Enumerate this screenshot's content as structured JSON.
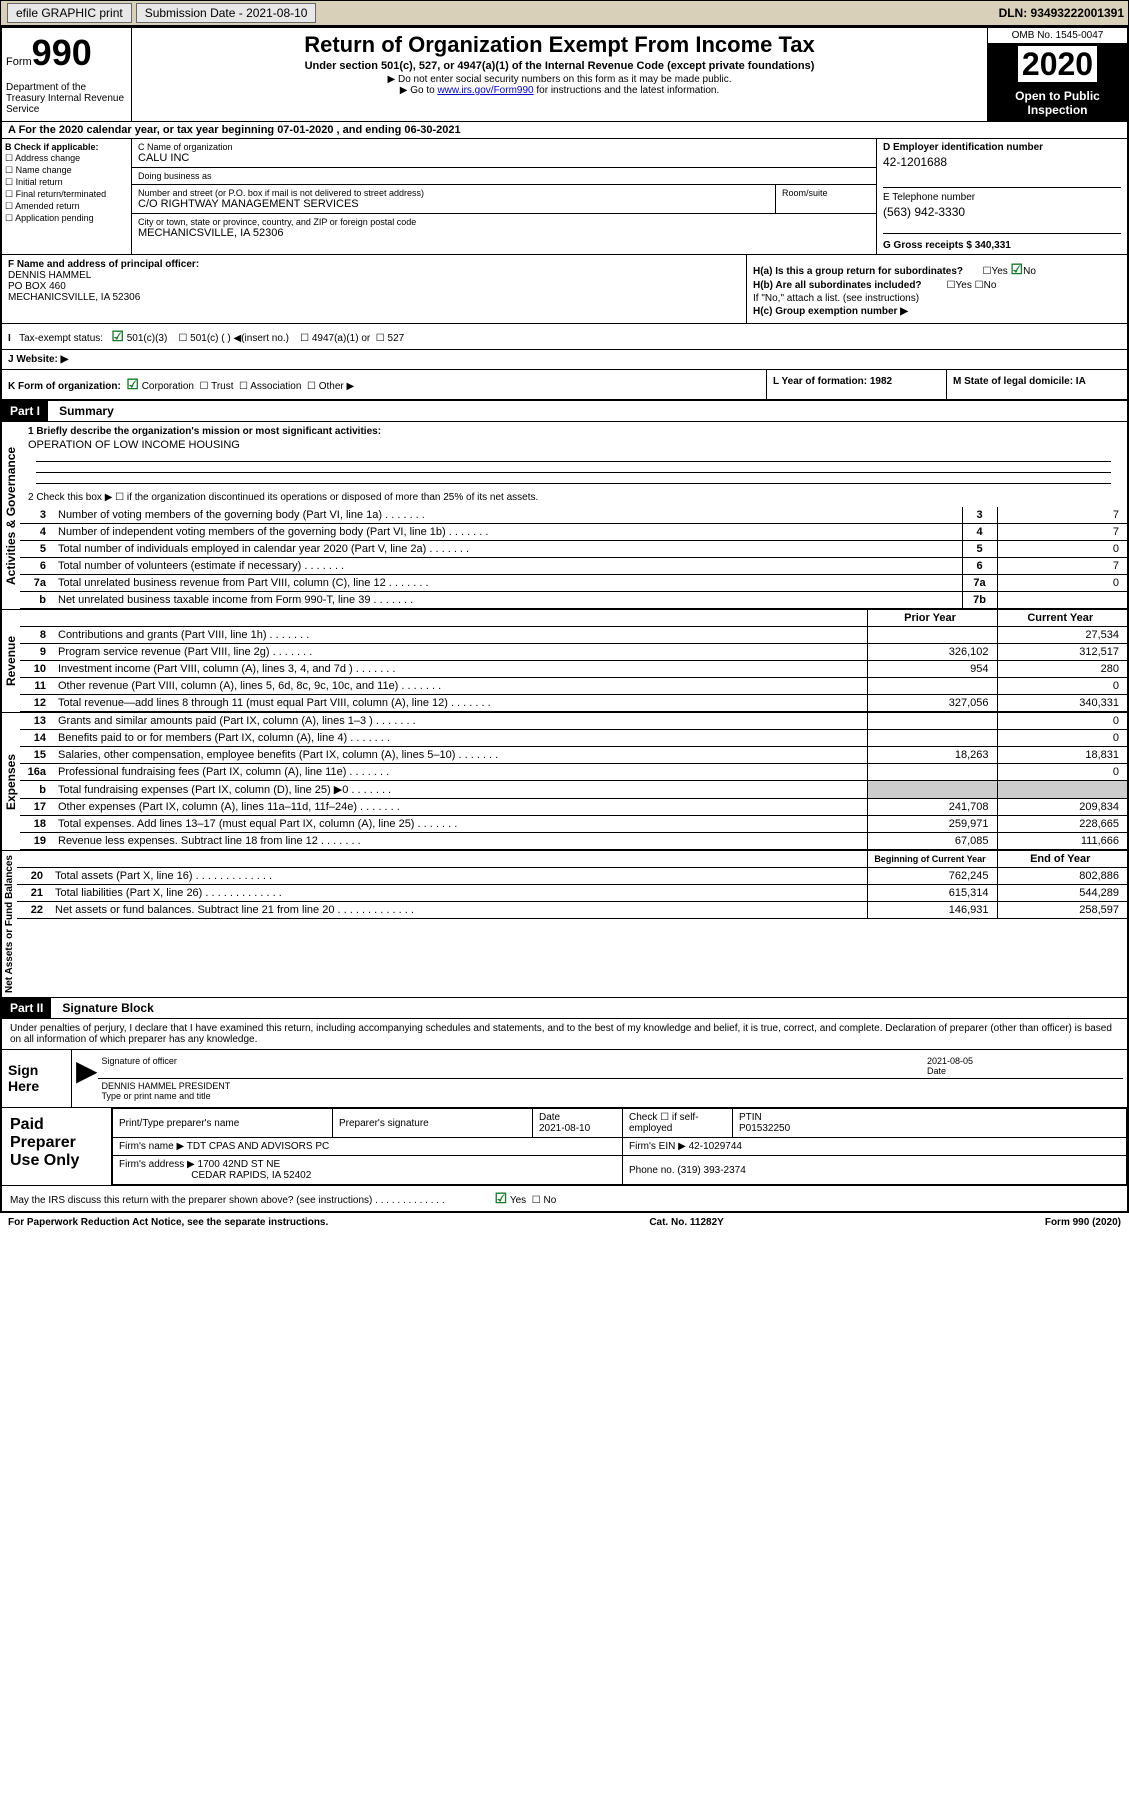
{
  "topbar": {
    "efile": "efile GRAPHIC print",
    "subm_label": "Submission Date - 2021-08-10",
    "dln": "DLN: 93493222001391"
  },
  "header": {
    "form_label": "Form",
    "form_num": "990",
    "dept": "Department of the Treasury Internal Revenue Service",
    "title": "Return of Organization Exempt From Income Tax",
    "subtitle": "Under section 501(c), 527, or 4947(a)(1) of the Internal Revenue Code (except private foundations)",
    "line1": "▶ Do not enter social security numbers on this form as it may be made public.",
    "line2_pre": "▶ Go to ",
    "line2_link": "www.irs.gov/Form990",
    "line2_post": " for instructions and the latest information.",
    "omb": "OMB No. 1545-0047",
    "year": "2020",
    "open": "Open to Public Inspection"
  },
  "line_a": "A For the 2020 calendar year, or tax year beginning 07-01-2020    , and ending 06-30-2021",
  "col_b": {
    "hdr": "B Check if applicable:",
    "c1": "Address change",
    "c2": "Name change",
    "c3": "Initial return",
    "c4": "Final return/terminated",
    "c5": "Amended return",
    "c6": "Application pending"
  },
  "col_c": {
    "name_lbl": "C Name of organization",
    "name": "CALU INC",
    "dba_lbl": "Doing business as",
    "addr_lbl": "Number and street (or P.O. box if mail is not delivered to street address)",
    "addr": "C/O RIGHTWAY MANAGEMENT SERVICES",
    "room_lbl": "Room/suite",
    "city_lbl": "City or town, state or province, country, and ZIP or foreign postal code",
    "city": "MECHANICSVILLE, IA  52306"
  },
  "col_d": {
    "ein_lbl": "D Employer identification number",
    "ein": "42-1201688",
    "tel_lbl": "E Telephone number",
    "tel": "(563) 942-3330",
    "gross_lbl": "G Gross receipts $ 340,331"
  },
  "row_f": {
    "lbl": "F  Name and address of principal officer:",
    "name": "DENNIS HAMMEL",
    "addr1": "PO BOX 460",
    "addr2": "MECHANICSVILLE, IA  52306",
    "ha": "H(a)  Is this a group return for subordinates?",
    "hb": "H(b)  Are all subordinates included?",
    "hb2": "If \"No,\" attach a list. (see instructions)",
    "hc": "H(c)  Group exemption number ▶",
    "yes": "Yes",
    "no": "No"
  },
  "status": {
    "lbl": "Tax-exempt status:",
    "o1": "501(c)(3)",
    "o2": "501(c) (  ) ◀(insert no.)",
    "o3": "4947(a)(1) or",
    "o4": "527"
  },
  "website_lbl": "J   Website: ▶",
  "row_k": {
    "lbl": "K Form of organization:",
    "o1": "Corporation",
    "o2": "Trust",
    "o3": "Association",
    "o4": "Other ▶",
    "l": "L Year of formation: 1982",
    "m": "M State of legal domicile: IA"
  },
  "part1": {
    "hdr": "Part I",
    "title": "Summary",
    "vert1": "Activities & Governance",
    "vert2": "Revenue",
    "vert3": "Expenses",
    "vert4": "Net Assets or Fund Balances",
    "l1": "1  Briefly describe the organization's mission or most significant activities:",
    "l1v": "OPERATION OF LOW INCOME HOUSING",
    "l2": "2    Check this box ▶ ☐  if the organization discontinued its operations or disposed of more than 25% of its net assets.",
    "rows_gov": [
      {
        "n": "3",
        "t": "Number of voting members of the governing body (Part VI, line 1a)",
        "b": "3",
        "v": "7"
      },
      {
        "n": "4",
        "t": "Number of independent voting members of the governing body (Part VI, line 1b)",
        "b": "4",
        "v": "7"
      },
      {
        "n": "5",
        "t": "Total number of individuals employed in calendar year 2020 (Part V, line 2a)",
        "b": "5",
        "v": "0"
      },
      {
        "n": "6",
        "t": "Total number of volunteers (estimate if necessary)",
        "b": "6",
        "v": "7"
      },
      {
        "n": "7a",
        "t": "Total unrelated business revenue from Part VIII, column (C), line 12",
        "b": "7a",
        "v": "0"
      },
      {
        "n": "b",
        "t": "Net unrelated business taxable income from Form 990-T, line 39",
        "b": "7b",
        "v": ""
      }
    ],
    "col_hdr1": "Prior Year",
    "col_hdr2": "Current Year",
    "rows_rev": [
      {
        "n": "8",
        "t": "Contributions and grants (Part VIII, line 1h)",
        "p": "",
        "c": "27,534"
      },
      {
        "n": "9",
        "t": "Program service revenue (Part VIII, line 2g)",
        "p": "326,102",
        "c": "312,517"
      },
      {
        "n": "10",
        "t": "Investment income (Part VIII, column (A), lines 3, 4, and 7d )",
        "p": "954",
        "c": "280"
      },
      {
        "n": "11",
        "t": "Other revenue (Part VIII, column (A), lines 5, 6d, 8c, 9c, 10c, and 11e)",
        "p": "",
        "c": "0"
      },
      {
        "n": "12",
        "t": "Total revenue—add lines 8 through 11 (must equal Part VIII, column (A), line 12)",
        "p": "327,056",
        "c": "340,331"
      }
    ],
    "rows_exp": [
      {
        "n": "13",
        "t": "Grants and similar amounts paid (Part IX, column (A), lines 1–3 )",
        "p": "",
        "c": "0"
      },
      {
        "n": "14",
        "t": "Benefits paid to or for members (Part IX, column (A), line 4)",
        "p": "",
        "c": "0"
      },
      {
        "n": "15",
        "t": "Salaries, other compensation, employee benefits (Part IX, column (A), lines 5–10)",
        "p": "18,263",
        "c": "18,831"
      },
      {
        "n": "16a",
        "t": "Professional fundraising fees (Part IX, column (A), line 11e)",
        "p": "",
        "c": "0"
      },
      {
        "n": "b",
        "t": "Total fundraising expenses (Part IX, column (D), line 25) ▶0",
        "p": "shaded",
        "c": "shaded"
      },
      {
        "n": "17",
        "t": "Other expenses (Part IX, column (A), lines 11a–11d, 11f–24e)",
        "p": "241,708",
        "c": "209,834"
      },
      {
        "n": "18",
        "t": "Total expenses. Add lines 13–17 (must equal Part IX, column (A), line 25)",
        "p": "259,971",
        "c": "228,665"
      },
      {
        "n": "19",
        "t": "Revenue less expenses. Subtract line 18 from line 12",
        "p": "67,085",
        "c": "111,666"
      }
    ],
    "col_hdr3": "Beginning of Current Year",
    "col_hdr4": "End of Year",
    "rows_net": [
      {
        "n": "20",
        "t": "Total assets (Part X, line 16)",
        "p": "762,245",
        "c": "802,886"
      },
      {
        "n": "21",
        "t": "Total liabilities (Part X, line 26)",
        "p": "615,314",
        "c": "544,289"
      },
      {
        "n": "22",
        "t": "Net assets or fund balances. Subtract line 21 from line 20",
        "p": "146,931",
        "c": "258,597"
      }
    ]
  },
  "part2": {
    "hdr": "Part II",
    "title": "Signature Block",
    "decl": "Under penalties of perjury, I declare that I have examined this return, including accompanying schedules and statements, and to the best of my knowledge and belief, it is true, correct, and complete. Declaration of preparer (other than officer) is based on all information of which preparer has any knowledge.",
    "sign_here": "Sign Here",
    "sig_off": "Signature of officer",
    "date": "Date",
    "date_v": "2021-08-05",
    "name": "DENNIS HAMMEL PRESIDENT",
    "name_lbl": "Type or print name and title",
    "paid": "Paid Preparer Use Only",
    "prep_name_lbl": "Print/Type preparer's name",
    "prep_sig_lbl": "Preparer's signature",
    "prep_date_lbl": "Date",
    "prep_date": "2021-08-10",
    "prep_check": "Check ☐ if self-employed",
    "ptin_lbl": "PTIN",
    "ptin": "P01532250",
    "firm_name_lbl": "Firm's name    ▶",
    "firm_name": "TDT CPAS AND ADVISORS PC",
    "firm_ein_lbl": "Firm's EIN ▶",
    "firm_ein": "42-1029744",
    "firm_addr_lbl": "Firm's address ▶",
    "firm_addr1": "1700 42ND ST NE",
    "firm_addr2": "CEDAR RAPIDS, IA  52402",
    "phone_lbl": "Phone no.",
    "phone": "(319) 393-2374",
    "discuss": "May the IRS discuss this return with the preparer shown above? (see instructions)"
  },
  "footer": {
    "left": "For Paperwork Reduction Act Notice, see the separate instructions.",
    "mid": "Cat. No. 11282Y",
    "right": "Form 990 (2020)"
  }
}
